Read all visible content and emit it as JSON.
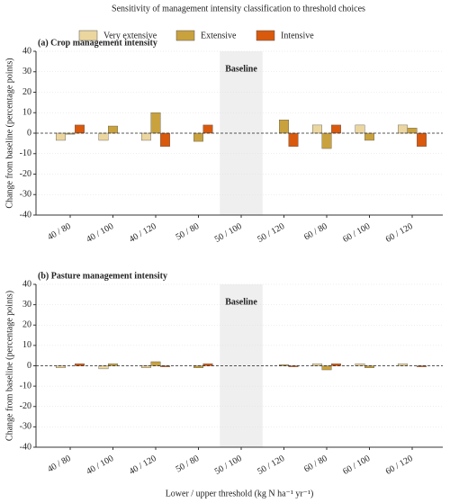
{
  "title": "Sensitivity of management intensity classification to threshold choices",
  "x_label": "Lower / upper threshold (kg N ha⁻¹ yr⁻¹)",
  "legend": [
    {
      "name": "Very extensive",
      "color": "#ecd6a0"
    },
    {
      "name": "Extensive",
      "color": "#c9a23e"
    },
    {
      "name": "Intensive",
      "color": "#d9590d"
    }
  ],
  "chart_data": [
    {
      "type": "bar",
      "title": "(a) Crop management intensity",
      "y_label": "Change from baseline (percentage points)",
      "categories": [
        "40 / 80",
        "40 / 100",
        "40 / 120",
        "50 / 80",
        "50 / 100",
        "50 / 120",
        "60 / 80",
        "60 / 100",
        "60 / 120"
      ],
      "highlight": {
        "category": "50 / 100",
        "label": "Baseline"
      },
      "series": [
        {
          "values": [
            -3.5,
            -3.5,
            -3.5,
            0,
            0,
            0,
            4,
            4,
            4
          ]
        },
        {
          "values": [
            -0.5,
            3.5,
            10,
            -4,
            0,
            6.5,
            -7.5,
            -3.5,
            2.5
          ]
        },
        {
          "values": [
            4,
            0,
            -6.5,
            4,
            0,
            -6.5,
            4,
            0,
            -6.5
          ]
        }
      ],
      "ylim": [
        -40,
        40
      ],
      "yticks": [
        -40,
        -30,
        -20,
        -10,
        0,
        10,
        20,
        30,
        40
      ],
      "grid": true
    },
    {
      "type": "bar",
      "title": "(b) Pasture management intensity",
      "y_label": "Change from baseline (percentage points)",
      "categories": [
        "40 / 80",
        "40 / 100",
        "40 / 120",
        "50 / 80",
        "50 / 100",
        "50 / 120",
        "60 / 80",
        "60 / 100",
        "60 / 120"
      ],
      "highlight": {
        "category": "50 / 100",
        "label": "Baseline"
      },
      "series": [
        {
          "values": [
            -1,
            -1.5,
            -1,
            0,
            0,
            0,
            1,
            1,
            1
          ]
        },
        {
          "values": [
            0,
            1,
            2,
            -1,
            0,
            0.5,
            -2,
            -1,
            0
          ]
        },
        {
          "values": [
            1,
            0,
            -0.5,
            1,
            0,
            -0.5,
            1,
            0,
            -0.5
          ]
        }
      ],
      "ylim": [
        -40,
        40
      ],
      "yticks": [
        -40,
        -30,
        -20,
        -10,
        0,
        10,
        20,
        30,
        40
      ],
      "grid": true
    }
  ]
}
